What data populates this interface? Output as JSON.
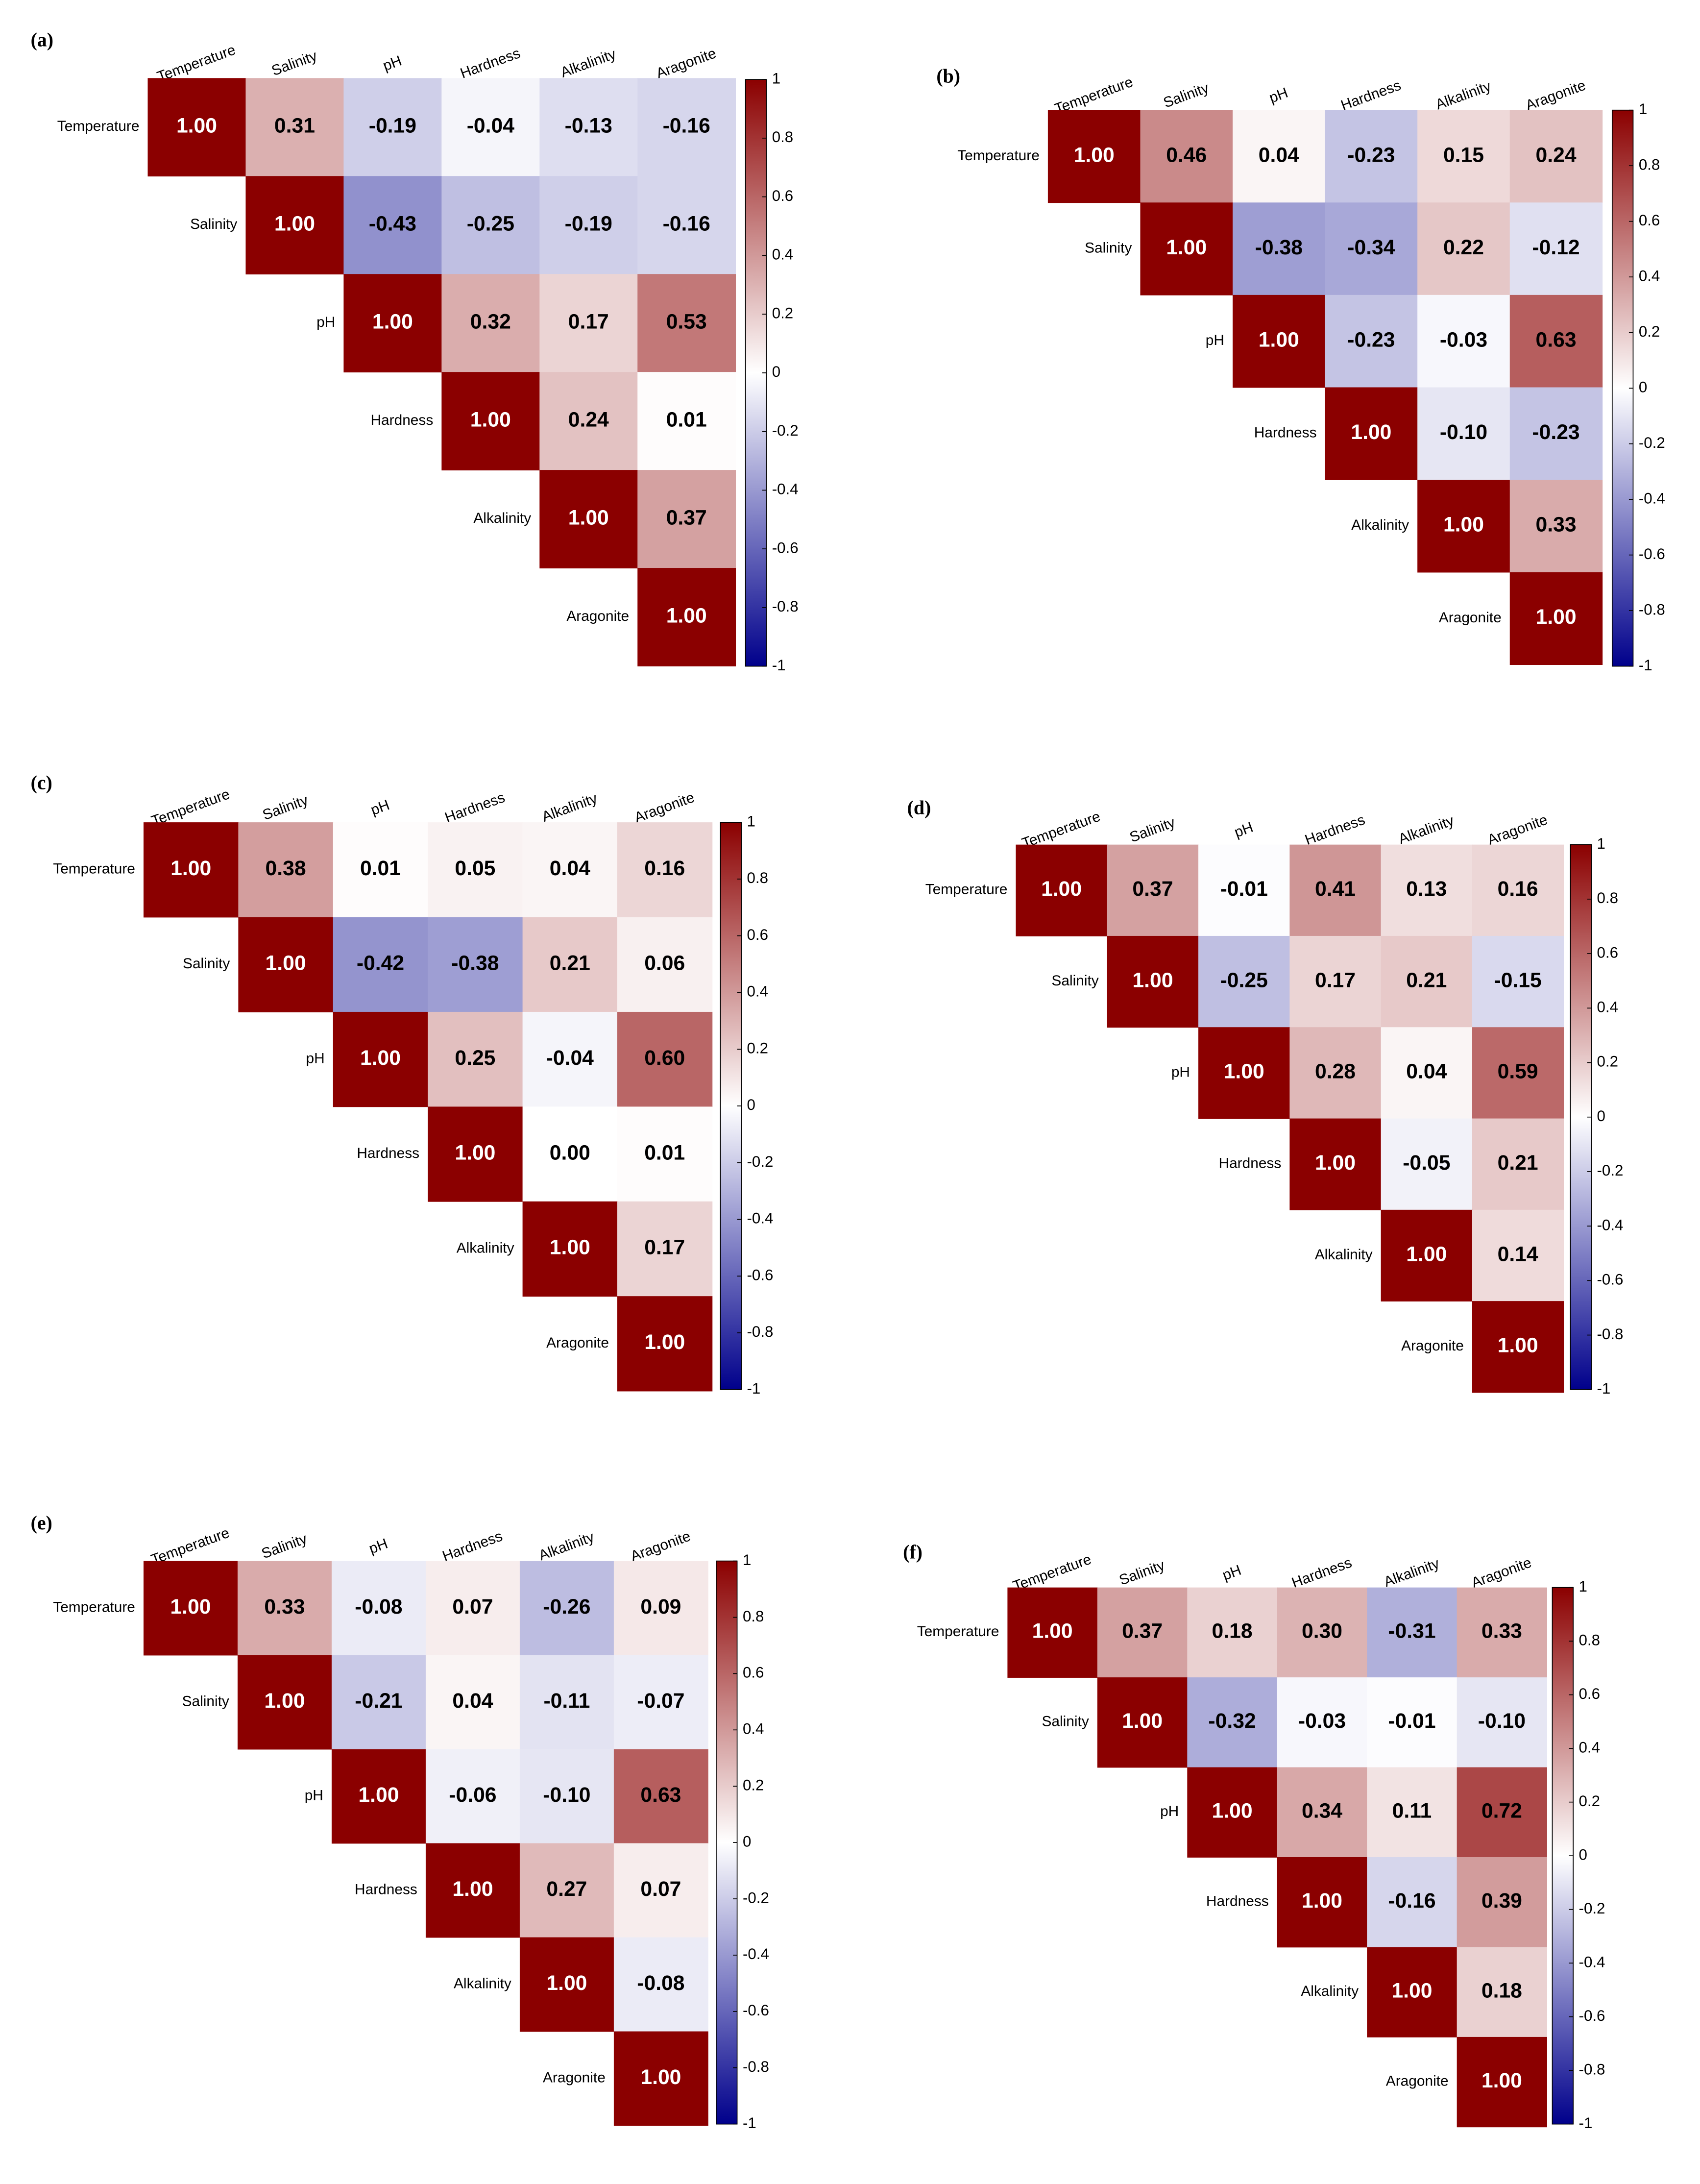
{
  "chart_data": [
    {
      "type": "heatmap",
      "title": "(a)",
      "categories": [
        "Temperature",
        "Salinity",
        "pH",
        "Hardness",
        "Alkalinity",
        "Aragonite"
      ],
      "values": [
        [
          1,
          0.31,
          -0.19,
          -0.04,
          -0.13,
          -0.16
        ],
        [
          null,
          1,
          -0.43,
          -0.25,
          -0.19,
          -0.16
        ],
        [
          null,
          null,
          1,
          0.32,
          0.17,
          0.53
        ],
        [
          null,
          null,
          null,
          1,
          0.24,
          0.01
        ],
        [
          null,
          null,
          null,
          null,
          1,
          0.37
        ],
        [
          null,
          null,
          null,
          null,
          null,
          1
        ]
      ],
      "value_labels": [
        [
          "1.00",
          "0.31",
          "-0.19",
          "-0.04",
          "-0.13",
          "-0.16"
        ],
        [
          null,
          "1.00",
          "-0.43",
          "-0.25",
          "-0.19",
          "-0.16"
        ],
        [
          null,
          null,
          "1.00",
          "0.32",
          "0.17",
          "0.53"
        ],
        [
          null,
          null,
          null,
          "1.00",
          "0.24",
          "0.01"
        ],
        [
          null,
          null,
          null,
          null,
          "1.00",
          "0.37"
        ],
        [
          null,
          null,
          null,
          null,
          null,
          "1.00"
        ]
      ],
      "colormap": [
        "#00008B",
        "#FFFFFF",
        "#8B0000"
      ],
      "clim": [
        -1,
        1
      ],
      "cticks": [
        1,
        0.8,
        0.6,
        0.4,
        0.2,
        0,
        -0.2,
        -0.4,
        -0.6,
        -0.8,
        -1
      ]
    },
    {
      "type": "heatmap",
      "title": "(b)",
      "categories": [
        "Temperature",
        "Salinity",
        "pH",
        "Hardness",
        "Alkalinity",
        "Aragonite"
      ],
      "values": [
        [
          1,
          0.46,
          0.04,
          -0.23,
          0.15,
          0.24
        ],
        [
          null,
          1,
          -0.38,
          -0.34,
          0.22,
          -0.12
        ],
        [
          null,
          null,
          1,
          -0.23,
          -0.03,
          0.63
        ],
        [
          null,
          null,
          null,
          1,
          -0.1,
          -0.23
        ],
        [
          null,
          null,
          null,
          null,
          1,
          0.33
        ],
        [
          null,
          null,
          null,
          null,
          null,
          1
        ]
      ],
      "value_labels": [
        [
          "1.00",
          "0.46",
          "0.04",
          "-0.23",
          "0.15",
          "0.24"
        ],
        [
          null,
          "1.00",
          "-0.38",
          "-0.34",
          "0.22",
          "-0.12"
        ],
        [
          null,
          null,
          "1.00",
          "-0.23",
          "-0.03",
          "0.63"
        ],
        [
          null,
          null,
          null,
          "1.00",
          "-0.10",
          "-0.23"
        ],
        [
          null,
          null,
          null,
          null,
          "1.00",
          "0.33"
        ],
        [
          null,
          null,
          null,
          null,
          null,
          "1.00"
        ]
      ],
      "colormap": [
        "#00008B",
        "#FFFFFF",
        "#8B0000"
      ],
      "clim": [
        -1,
        1
      ],
      "cticks": [
        1,
        0.8,
        0.6,
        0.4,
        0.2,
        0,
        -0.2,
        -0.4,
        -0.6,
        -0.8,
        -1
      ]
    },
    {
      "type": "heatmap",
      "title": "(c)",
      "categories": [
        "Temperature",
        "Salinity",
        "pH",
        "Hardness",
        "Alkalinity",
        "Aragonite"
      ],
      "values": [
        [
          1,
          0.38,
          0.01,
          0.05,
          0.04,
          0.16
        ],
        [
          null,
          1,
          -0.42,
          -0.38,
          0.21,
          0.06
        ],
        [
          null,
          null,
          1,
          0.25,
          -0.04,
          0.6
        ],
        [
          null,
          null,
          null,
          1,
          0,
          0.01
        ],
        [
          null,
          null,
          null,
          null,
          1,
          0.17
        ],
        [
          null,
          null,
          null,
          null,
          null,
          1
        ]
      ],
      "value_labels": [
        [
          "1.00",
          "0.38",
          "0.01",
          "0.05",
          "0.04",
          "0.16"
        ],
        [
          null,
          "1.00",
          "-0.42",
          "-0.38",
          "0.21",
          "0.06"
        ],
        [
          null,
          null,
          "1.00",
          "0.25",
          "-0.04",
          "0.60"
        ],
        [
          null,
          null,
          null,
          "1.00",
          "0.00",
          "0.01"
        ],
        [
          null,
          null,
          null,
          null,
          "1.00",
          "0.17"
        ],
        [
          null,
          null,
          null,
          null,
          null,
          "1.00"
        ]
      ],
      "colormap": [
        "#00008B",
        "#FFFFFF",
        "#8B0000"
      ],
      "clim": [
        -1,
        1
      ],
      "cticks": [
        1,
        0.8,
        0.6,
        0.4,
        0.2,
        0,
        -0.2,
        -0.4,
        -0.6,
        -0.8,
        -1
      ]
    },
    {
      "type": "heatmap",
      "title": "(d)",
      "categories": [
        "Temperature",
        "Salinity",
        "pH",
        "Hardness",
        "Alkalinity",
        "Aragonite"
      ],
      "values": [
        [
          1,
          0.37,
          -0.01,
          0.41,
          0.13,
          0.16
        ],
        [
          null,
          1,
          -0.25,
          0.17,
          0.21,
          -0.15
        ],
        [
          null,
          null,
          1,
          0.28,
          0.04,
          0.59
        ],
        [
          null,
          null,
          null,
          1,
          -0.05,
          0.21
        ],
        [
          null,
          null,
          null,
          null,
          1,
          0.14
        ],
        [
          null,
          null,
          null,
          null,
          null,
          1
        ]
      ],
      "value_labels": [
        [
          "1.00",
          "0.37",
          "-0.01",
          "0.41",
          "0.13",
          "0.16"
        ],
        [
          null,
          "1.00",
          "-0.25",
          "0.17",
          "0.21",
          "-0.15"
        ],
        [
          null,
          null,
          "1.00",
          "0.28",
          "0.04",
          "0.59"
        ],
        [
          null,
          null,
          null,
          "1.00",
          "-0.05",
          "0.21"
        ],
        [
          null,
          null,
          null,
          null,
          "1.00",
          "0.14"
        ],
        [
          null,
          null,
          null,
          null,
          null,
          "1.00"
        ]
      ],
      "colormap": [
        "#00008B",
        "#FFFFFF",
        "#8B0000"
      ],
      "clim": [
        -1,
        1
      ],
      "cticks": [
        1,
        0.8,
        0.6,
        0.4,
        0.2,
        0,
        -0.2,
        -0.4,
        -0.6,
        -0.8,
        -1
      ]
    },
    {
      "type": "heatmap",
      "title": "(e)",
      "categories": [
        "Temperature",
        "Salinity",
        "pH",
        "Hardness",
        "Alkalinity",
        "Aragonite"
      ],
      "values": [
        [
          1,
          0.33,
          -0.08,
          0.07,
          -0.26,
          0.09
        ],
        [
          null,
          1,
          -0.21,
          0.04,
          -0.11,
          -0.07
        ],
        [
          null,
          null,
          1,
          -0.06,
          -0.1,
          0.63
        ],
        [
          null,
          null,
          null,
          1,
          0.27,
          0.07
        ],
        [
          null,
          null,
          null,
          null,
          1,
          -0.08
        ],
        [
          null,
          null,
          null,
          null,
          null,
          1
        ]
      ],
      "value_labels": [
        [
          "1.00",
          "0.33",
          "-0.08",
          "0.07",
          "-0.26",
          "0.09"
        ],
        [
          null,
          "1.00",
          "-0.21",
          "0.04",
          "-0.11",
          "-0.07"
        ],
        [
          null,
          null,
          "1.00",
          "-0.06",
          "-0.10",
          "0.63"
        ],
        [
          null,
          null,
          null,
          "1.00",
          "0.27",
          "0.07"
        ],
        [
          null,
          null,
          null,
          null,
          "1.00",
          "-0.08"
        ],
        [
          null,
          null,
          null,
          null,
          null,
          "1.00"
        ]
      ],
      "colormap": [
        "#00008B",
        "#FFFFFF",
        "#8B0000"
      ],
      "clim": [
        -1,
        1
      ],
      "cticks": [
        1,
        0.8,
        0.6,
        0.4,
        0.2,
        0,
        -0.2,
        -0.4,
        -0.6,
        -0.8,
        -1
      ]
    },
    {
      "type": "heatmap",
      "title": "(f)",
      "categories": [
        "Temperature",
        "Salinity",
        "pH",
        "Hardness",
        "Alkalinity",
        "Aragonite"
      ],
      "values": [
        [
          1,
          0.37,
          0.18,
          0.3,
          -0.31,
          0.33
        ],
        [
          null,
          1,
          -0.32,
          -0.03,
          -0.01,
          -0.1
        ],
        [
          null,
          null,
          1,
          0.34,
          0.11,
          0.72
        ],
        [
          null,
          null,
          null,
          1,
          -0.16,
          0.39
        ],
        [
          null,
          null,
          null,
          null,
          1,
          0.18
        ],
        [
          null,
          null,
          null,
          null,
          null,
          1
        ]
      ],
      "value_labels": [
        [
          "1.00",
          "0.37",
          "0.18",
          "0.30",
          "-0.31",
          "0.33"
        ],
        [
          null,
          "1.00",
          "-0.32",
          "-0.03",
          "-0.01",
          "-0.10"
        ],
        [
          null,
          null,
          "1.00",
          "0.34",
          "0.11",
          "0.72"
        ],
        [
          null,
          null,
          null,
          "1.00",
          "-0.16",
          "0.39"
        ],
        [
          null,
          null,
          null,
          null,
          "1.00",
          "0.18"
        ],
        [
          null,
          null,
          null,
          null,
          null,
          "1.00"
        ]
      ],
      "colormap": [
        "#00008B",
        "#FFFFFF",
        "#8B0000"
      ],
      "clim": [
        -1,
        1
      ],
      "cticks": [
        1,
        0.8,
        0.6,
        0.4,
        0.2,
        0,
        -0.2,
        -0.4,
        -0.6,
        -0.8,
        -1
      ]
    }
  ]
}
